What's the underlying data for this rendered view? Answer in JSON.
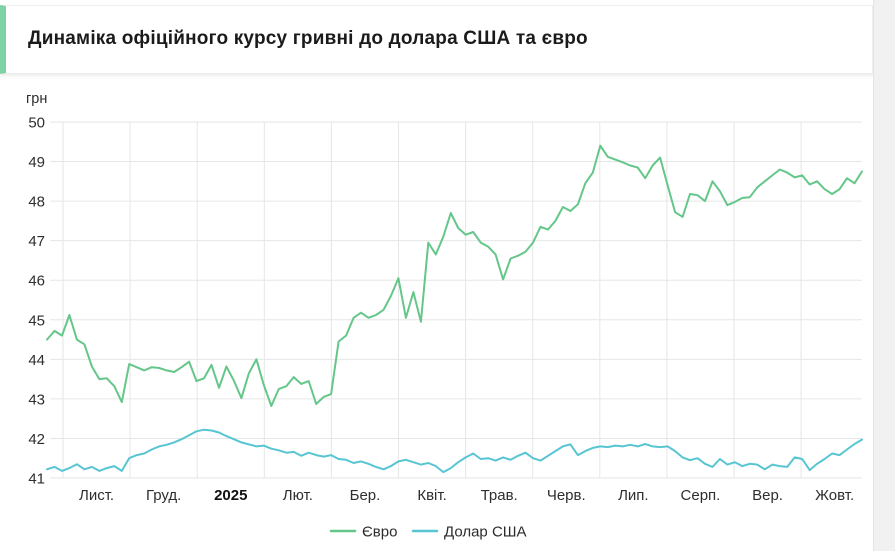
{
  "header": {
    "title": "Динаміка офіційного курсу гривні до долара США та євро"
  },
  "colors": {
    "accent_bar": "#7fd2a4",
    "euro_line": "#65c689",
    "dollar_line": "#58c5d3",
    "grid": "#e6e6e6",
    "axis_text": "#2e2e2e",
    "gutter_bg": "#f1f1f2"
  },
  "chart_data": {
    "type": "line",
    "title": "Динаміка офіційного курсу гривні до долара США та євро",
    "unit_label": "грн",
    "ylabel": "грн",
    "xlabel": "",
    "ylim": [
      41,
      50
    ],
    "grid": true,
    "legend_position": "bottom",
    "y_ticks": [
      41,
      42,
      43,
      44,
      45,
      46,
      47,
      48,
      49,
      50
    ],
    "x_tick_labels": [
      "Лист.",
      "Груд.",
      "2025",
      "Лют.",
      "Бер.",
      "Квіт.",
      "Трав.",
      "Черв.",
      "Лип.",
      "Серп.",
      "Вер.",
      "Жовт."
    ],
    "bold_x_tick": "2025",
    "series": [
      {
        "name": "Євро",
        "color": "#65c689",
        "values": [
          44.5,
          44.72,
          44.6,
          45.12,
          44.5,
          44.38,
          43.82,
          43.5,
          43.52,
          43.32,
          42.92,
          43.88,
          43.8,
          43.72,
          43.8,
          43.78,
          43.72,
          43.68,
          43.8,
          43.94,
          43.45,
          43.52,
          43.86,
          43.28,
          43.82,
          43.46,
          43.02,
          43.65,
          44.0,
          43.35,
          42.82,
          43.25,
          43.32,
          43.55,
          43.38,
          43.45,
          42.87,
          43.05,
          43.12,
          44.45,
          44.6,
          45.05,
          45.18,
          45.05,
          45.12,
          45.25,
          45.6,
          46.05,
          45.05,
          45.7,
          44.95,
          46.95,
          46.65,
          47.1,
          47.7,
          47.32,
          47.15,
          47.22,
          46.95,
          46.85,
          46.65,
          46.02,
          46.55,
          46.62,
          46.72,
          46.95,
          47.35,
          47.28,
          47.5,
          47.85,
          47.75,
          47.92,
          48.45,
          48.72,
          49.4,
          49.12,
          49.05,
          48.98,
          48.9,
          48.85,
          48.58,
          48.9,
          49.1,
          48.4,
          47.72,
          47.6,
          48.18,
          48.15,
          48.0,
          48.5,
          48.25,
          47.9,
          47.98,
          48.08,
          48.1,
          48.35,
          48.5,
          48.65,
          48.8,
          48.72,
          48.6,
          48.65,
          48.42,
          48.5,
          48.3,
          48.18,
          48.3,
          48.58,
          48.45,
          48.75
        ]
      },
      {
        "name": "Долар США",
        "color": "#58c5d3",
        "values": [
          41.22,
          41.28,
          41.18,
          41.25,
          41.35,
          41.22,
          41.28,
          41.18,
          41.25,
          41.3,
          41.18,
          41.5,
          41.58,
          41.62,
          41.72,
          41.8,
          41.84,
          41.9,
          41.98,
          42.08,
          42.18,
          42.22,
          42.2,
          42.15,
          42.06,
          41.98,
          41.9,
          41.85,
          41.8,
          41.82,
          41.74,
          41.7,
          41.64,
          41.66,
          41.56,
          41.64,
          41.58,
          41.54,
          41.58,
          41.48,
          41.46,
          41.38,
          41.42,
          41.36,
          41.28,
          41.22,
          41.3,
          41.42,
          41.46,
          41.4,
          41.34,
          41.38,
          41.3,
          41.15,
          41.25,
          41.4,
          41.52,
          41.62,
          41.48,
          41.5,
          41.44,
          41.52,
          41.46,
          41.56,
          41.64,
          41.5,
          41.44,
          41.56,
          41.68,
          41.8,
          41.85,
          41.58,
          41.68,
          41.76,
          41.8,
          41.78,
          41.82,
          41.8,
          41.84,
          41.8,
          41.86,
          41.8,
          41.78,
          41.8,
          41.68,
          41.52,
          41.45,
          41.5,
          41.36,
          41.28,
          41.48,
          41.34,
          41.4,
          41.3,
          41.36,
          41.34,
          41.22,
          41.34,
          41.3,
          41.28,
          41.52,
          41.48,
          41.2,
          41.36,
          41.48,
          41.62,
          41.58,
          41.72,
          41.86,
          41.97
        ]
      }
    ]
  }
}
